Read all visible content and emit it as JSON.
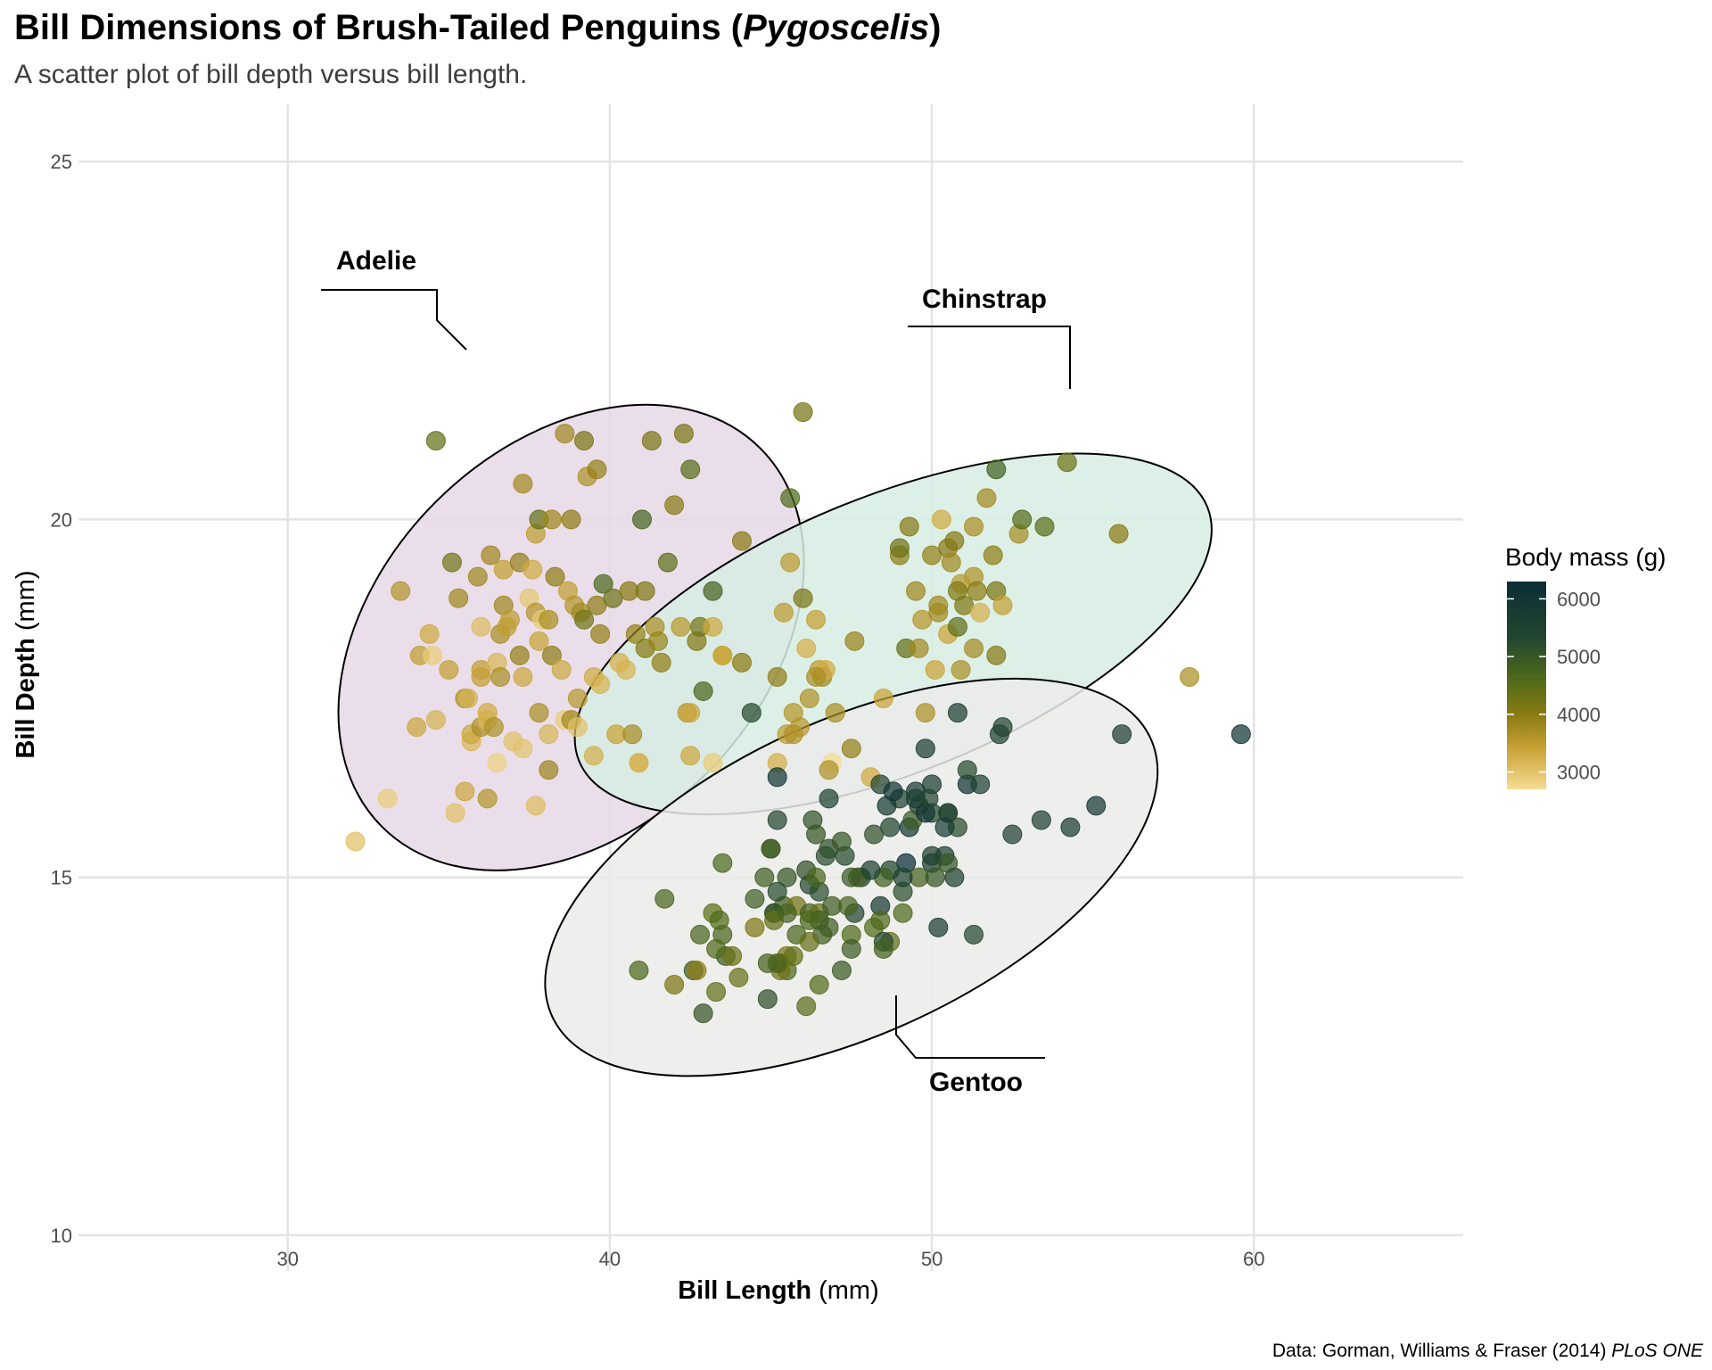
{
  "title": {
    "main": "Bill Dimensions of Brush-Tailed Penguins (",
    "genus": "Pygoscelis",
    "close": ")"
  },
  "subtitle": "A scatter plot of bill depth versus bill length.",
  "caption": {
    "text": "Data: Gorman, Williams & Fraser (2014) ",
    "journal": "PLoS ONE"
  },
  "colors": {
    "grid": "#e3e3e3",
    "point_low": "#f7dc93",
    "point_mid1": "#c9a336",
    "point_mid2": "#8a7a12",
    "point_mid3": "#4f6b1a",
    "point_mid4": "#24472f",
    "point_high": "#0b2d36",
    "ellipse_adelie": "#e6d8e8",
    "ellipse_chinstrap": "#d7ede4",
    "ellipse_gentoo": "#ebebea"
  },
  "chart_data": {
    "type": "scatter",
    "xlabel": {
      "bold": "Bill Length",
      "rest": " (mm)"
    },
    "ylabel": {
      "bold": "Bill Depth",
      "rest": " (mm)"
    },
    "xlim": [
      23.5,
      66.5
    ],
    "ylim": [
      9.5,
      25.8
    ],
    "x_ticks": [
      30,
      40,
      50,
      60
    ],
    "y_ticks": [
      10,
      15,
      20,
      25
    ],
    "grid": true,
    "legend": {
      "title": "Body mass (g)",
      "position": "right",
      "range": [
        2700,
        6300
      ],
      "ticks": [
        3000,
        4000,
        5000,
        6000
      ]
    },
    "groups": [
      {
        "name": "Adelie",
        "ellipse": {
          "cx": 38.8,
          "cy": 18.35,
          "rx_deg": 7.2,
          "ry_deg": 1.2,
          "angle_deg": 45
        }
      },
      {
        "name": "Chinstrap",
        "ellipse": {
          "cx": 48.8,
          "cy": 18.4,
          "rx_deg": 8.1,
          "ry_deg": 0.88,
          "angle_deg": 55
        }
      },
      {
        "name": "Gentoo",
        "ellipse": {
          "cx": 47.5,
          "cy": 15.0,
          "rx_deg": 8.3,
          "ry_deg": 0.95,
          "angle_deg": 58
        }
      }
    ],
    "points": [
      [
        32.1,
        15.5,
        3050
      ],
      [
        33.1,
        16.1,
        2900
      ],
      [
        33.5,
        19.0,
        3600
      ],
      [
        34.0,
        17.1,
        3350
      ],
      [
        34.1,
        18.1,
        3475
      ],
      [
        34.4,
        18.4,
        3325
      ],
      [
        34.5,
        18.1,
        2900
      ],
      [
        34.6,
        21.1,
        4400
      ],
      [
        34.6,
        17.2,
        3200
      ],
      [
        35.0,
        17.9,
        3450
      ],
      [
        35.1,
        19.4,
        4200
      ],
      [
        35.2,
        15.9,
        3050
      ],
      [
        35.3,
        18.9,
        3800
      ],
      [
        35.5,
        17.5,
        3700
      ],
      [
        35.5,
        16.2,
        3350
      ],
      [
        35.6,
        17.5,
        3200
      ],
      [
        35.7,
        16.9,
        3150
      ],
      [
        35.7,
        17.0,
        3350
      ],
      [
        35.9,
        19.2,
        3800
      ],
      [
        36.0,
        17.9,
        3450
      ],
      [
        36.0,
        18.5,
        3100
      ],
      [
        36.0,
        17.8,
        3450
      ],
      [
        36.0,
        17.1,
        3700
      ],
      [
        36.2,
        16.1,
        3600
      ],
      [
        36.2,
        17.2,
        3150
      ],
      [
        36.2,
        17.3,
        3300
      ],
      [
        36.3,
        19.5,
        3800
      ],
      [
        36.4,
        17.1,
        3650
      ],
      [
        36.5,
        18.0,
        3150
      ],
      [
        36.5,
        16.6,
        2850
      ],
      [
        36.6,
        17.8,
        3700
      ],
      [
        36.6,
        18.4,
        3700
      ],
      [
        36.7,
        19.3,
        3450
      ],
      [
        36.7,
        18.8,
        3800
      ],
      [
        36.8,
        18.5,
        3500
      ],
      [
        36.9,
        18.6,
        3500
      ],
      [
        37.0,
        16.9,
        3050
      ],
      [
        37.2,
        18.1,
        3900
      ],
      [
        37.2,
        19.4,
        3900
      ],
      [
        37.3,
        20.5,
        3775
      ],
      [
        37.3,
        17.8,
        3350
      ],
      [
        37.3,
        16.8,
        3000
      ],
      [
        37.5,
        18.9,
        2975
      ],
      [
        37.6,
        19.3,
        3300
      ],
      [
        37.7,
        18.7,
        3600
      ],
      [
        37.7,
        16.0,
        3075
      ],
      [
        37.7,
        19.8,
        3500
      ],
      [
        37.8,
        18.3,
        3400
      ],
      [
        37.8,
        17.3,
        3700
      ],
      [
        37.8,
        20.0,
        4400
      ],
      [
        37.9,
        18.6,
        2925
      ],
      [
        38.1,
        18.6,
        3700
      ],
      [
        38.1,
        17.0,
        3175
      ],
      [
        38.1,
        16.5,
        3825
      ],
      [
        38.2,
        18.1,
        3950
      ],
      [
        38.2,
        20.0,
        3800
      ],
      [
        38.3,
        19.2,
        3950
      ],
      [
        38.5,
        17.9,
        3325
      ],
      [
        38.6,
        21.2,
        3800
      ],
      [
        38.6,
        17.2,
        2900
      ],
      [
        38.7,
        19.0,
        3450
      ],
      [
        38.8,
        17.2,
        3800
      ],
      [
        38.8,
        20.0,
        3950
      ],
      [
        38.9,
        18.8,
        3600
      ],
      [
        39.0,
        17.1,
        3050
      ],
      [
        39.0,
        17.5,
        3550
      ],
      [
        39.1,
        18.7,
        3750
      ],
      [
        39.2,
        21.1,
        4150
      ],
      [
        39.2,
        18.6,
        4250
      ],
      [
        39.3,
        20.6,
        3650
      ],
      [
        39.5,
        16.7,
        3250
      ],
      [
        39.5,
        17.8,
        3300
      ],
      [
        39.6,
        20.7,
        3900
      ],
      [
        39.6,
        18.8,
        3950
      ],
      [
        39.7,
        18.4,
        3900
      ],
      [
        39.7,
        17.7,
        3200
      ],
      [
        39.8,
        19.1,
        4650
      ],
      [
        40.1,
        18.9,
        4300
      ],
      [
        40.2,
        17.0,
        3400
      ],
      [
        40.3,
        18.0,
        3250
      ],
      [
        40.5,
        17.9,
        3200
      ],
      [
        40.6,
        19.0,
        4000
      ],
      [
        40.7,
        17.0,
        3725
      ],
      [
        40.8,
        18.4,
        3900
      ],
      [
        40.9,
        16.6,
        3200
      ],
      [
        41.0,
        20.0,
        4725
      ],
      [
        41.1,
        19.0,
        4100
      ],
      [
        41.1,
        18.2,
        4050
      ],
      [
        41.3,
        21.1,
        4150
      ],
      [
        41.4,
        18.5,
        3700
      ],
      [
        41.5,
        18.3,
        3875
      ],
      [
        41.6,
        18.0,
        3950
      ],
      [
        41.8,
        19.4,
        4450
      ],
      [
        42.0,
        20.2,
        4000
      ],
      [
        42.2,
        18.5,
        3550
      ],
      [
        42.3,
        21.2,
        4150
      ],
      [
        42.5,
        20.7,
        4500
      ],
      [
        42.7,
        18.3,
        4075
      ],
      [
        42.8,
        18.5,
        4250
      ],
      [
        42.9,
        17.6,
        4700
      ],
      [
        43.2,
        19.0,
        4775
      ],
      [
        43.2,
        18.5,
        3350
      ],
      [
        43.5,
        18.1,
        3400
      ],
      [
        44.1,
        19.7,
        4000
      ],
      [
        44.1,
        18.0,
        4000
      ],
      [
        45.6,
        20.3,
        4600
      ],
      [
        46.0,
        21.5,
        4200
      ],
      [
        46.5,
        17.9,
        3500
      ],
      [
        50.0,
        19.5,
        3900
      ],
      [
        51.3,
        19.2,
        3650
      ],
      [
        45.4,
        18.7,
        3525
      ],
      [
        52.7,
        19.8,
        3725
      ],
      [
        45.2,
        17.8,
        3950
      ],
      [
        46.1,
        18.2,
        3250
      ],
      [
        51.3,
        18.2,
        3750
      ],
      [
        46.0,
        18.9,
        4150
      ],
      [
        51.3,
        19.9,
        3700
      ],
      [
        46.6,
        17.8,
        3800
      ],
      [
        51.7,
        20.3,
        3775
      ],
      [
        47.0,
        17.3,
        3700
      ],
      [
        52.0,
        18.1,
        4050
      ],
      [
        45.9,
        17.1,
        3575
      ],
      [
        50.5,
        19.6,
        4050
      ],
      [
        50.3,
        20.0,
        3300
      ],
      [
        58.0,
        17.8,
        3700
      ],
      [
        46.4,
        18.6,
        3450
      ],
      [
        49.2,
        18.2,
        4400
      ],
      [
        42.4,
        17.3,
        3600
      ],
      [
        48.5,
        17.5,
        3400
      ],
      [
        43.2,
        16.6,
        2900
      ],
      [
        50.6,
        19.4,
        3800
      ],
      [
        46.7,
        17.9,
        3300
      ],
      [
        52.0,
        19.0,
        4150
      ],
      [
        50.5,
        18.4,
        3400
      ],
      [
        49.5,
        19.0,
        3800
      ],
      [
        46.4,
        17.8,
        3700
      ],
      [
        52.8,
        20.0,
        4550
      ],
      [
        40.9,
        16.6,
        3200
      ],
      [
        54.2,
        20.8,
        4300
      ],
      [
        42.5,
        16.7,
        3350
      ],
      [
        51.0,
        18.8,
        4100
      ],
      [
        49.7,
        18.6,
        3600
      ],
      [
        47.5,
        16.8,
        3900
      ],
      [
        47.6,
        18.3,
        3850
      ],
      [
        52.0,
        20.7,
        4800
      ],
      [
        46.9,
        16.6,
        2700
      ],
      [
        53.5,
        19.9,
        4500
      ],
      [
        49.0,
        19.5,
        3950
      ],
      [
        46.2,
        17.5,
        3650
      ],
      [
        50.9,
        19.1,
        3550
      ],
      [
        45.5,
        17.0,
        3500
      ],
      [
        50.9,
        17.9,
        3675
      ],
      [
        50.8,
        18.5,
        4450
      ],
      [
        50.1,
        17.9,
        3400
      ],
      [
        49.0,
        19.6,
        4300
      ],
      [
        51.5,
        18.7,
        3250
      ],
      [
        49.8,
        17.3,
        3675
      ],
      [
        48.1,
        16.4,
        3325
      ],
      [
        51.4,
        19.0,
        3950
      ],
      [
        45.7,
        17.3,
        3600
      ],
      [
        50.7,
        19.7,
        4050
      ],
      [
        42.5,
        17.3,
        3350
      ],
      [
        52.2,
        18.8,
        3450
      ],
      [
        45.2,
        16.6,
        3250
      ],
      [
        49.3,
        19.9,
        4050
      ],
      [
        50.2,
        18.8,
        3800
      ],
      [
        45.6,
        19.4,
        3525
      ],
      [
        51.9,
        19.5,
        3950
      ],
      [
        46.8,
        16.5,
        3650
      ],
      [
        45.7,
        17.0,
        3650
      ],
      [
        55.8,
        19.8,
        4000
      ],
      [
        43.5,
        18.1,
        3400
      ],
      [
        49.6,
        18.2,
        3775
      ],
      [
        50.8,
        19.0,
        4100
      ],
      [
        50.2,
        18.7,
        3775
      ],
      [
        46.1,
        13.2,
        4500
      ],
      [
        50.0,
        16.3,
        5700
      ],
      [
        48.7,
        14.1,
        4450
      ],
      [
        50.0,
        15.2,
        5700
      ],
      [
        47.6,
        14.5,
        5400
      ],
      [
        46.5,
        13.5,
        4550
      ],
      [
        45.4,
        14.6,
        4800
      ],
      [
        46.7,
        15.3,
        5200
      ],
      [
        43.3,
        13.4,
        4400
      ],
      [
        46.8,
        15.4,
        5150
      ],
      [
        40.9,
        13.7,
        4650
      ],
      [
        49.0,
        16.1,
        5550
      ],
      [
        45.5,
        13.7,
        4650
      ],
      [
        48.4,
        14.6,
        5850
      ],
      [
        45.8,
        14.6,
        4200
      ],
      [
        49.3,
        15.7,
        5850
      ],
      [
        42.0,
        13.5,
        4150
      ],
      [
        49.2,
        15.2,
        6300
      ],
      [
        46.2,
        14.5,
        4800
      ],
      [
        48.7,
        15.1,
        5350
      ],
      [
        50.2,
        14.3,
        5700
      ],
      [
        45.1,
        14.5,
        5000
      ],
      [
        46.5,
        14.5,
        4400
      ],
      [
        46.3,
        15.8,
        5050
      ],
      [
        42.9,
        13.1,
        5000
      ],
      [
        46.1,
        15.1,
        5100
      ],
      [
        44.5,
        14.3,
        4100
      ],
      [
        47.8,
        15.0,
        5650
      ],
      [
        48.2,
        14.3,
        4600
      ],
      [
        50.0,
        15.3,
        5550
      ],
      [
        47.3,
        15.3,
        5250
      ],
      [
        42.8,
        14.2,
        4700
      ],
      [
        45.1,
        14.5,
        5050
      ],
      [
        59.6,
        17.0,
        6050
      ],
      [
        49.1,
        14.8,
        5150
      ],
      [
        48.4,
        16.3,
        5400
      ],
      [
        42.6,
        13.7,
        4950
      ],
      [
        44.4,
        17.3,
        5250
      ],
      [
        44.0,
        13.6,
        4350
      ],
      [
        48.7,
        15.7,
        5350
      ],
      [
        42.7,
        13.7,
        3950
      ],
      [
        49.6,
        16.0,
        5700
      ],
      [
        45.3,
        13.7,
        4300
      ],
      [
        49.6,
        15.0,
        4750
      ],
      [
        50.5,
        15.9,
        5550
      ],
      [
        43.6,
        13.9,
        4900
      ],
      [
        45.5,
        13.9,
        4200
      ],
      [
        50.5,
        15.9,
        5400
      ],
      [
        44.9,
        13.3,
        5100
      ],
      [
        45.2,
        15.8,
        5300
      ],
      [
        46.6,
        14.2,
        4850
      ],
      [
        48.5,
        14.1,
        5300
      ],
      [
        45.1,
        14.4,
        4400
      ],
      [
        50.1,
        15.0,
        5000
      ],
      [
        46.5,
        14.4,
        4900
      ],
      [
        45.0,
        15.4,
        5050
      ],
      [
        43.8,
        13.9,
        4300
      ],
      [
        45.5,
        15.0,
        5000
      ],
      [
        43.2,
        14.5,
        4450
      ],
      [
        50.4,
        15.3,
        5550
      ],
      [
        45.3,
        13.8,
        4200
      ],
      [
        46.2,
        14.9,
        5300
      ],
      [
        45.7,
        13.9,
        4400
      ],
      [
        54.3,
        15.7,
        5650
      ],
      [
        45.8,
        14.2,
        4700
      ],
      [
        49.8,
        16.8,
        5700
      ],
      [
        46.2,
        14.4,
        4650
      ],
      [
        49.5,
        16.2,
        5800
      ],
      [
        43.5,
        14.2,
        4700
      ],
      [
        50.7,
        15.0,
        5550
      ],
      [
        47.7,
        15.0,
        4750
      ],
      [
        46.4,
        15.6,
        5000
      ],
      [
        48.2,
        15.6,
        5100
      ],
      [
        46.5,
        14.8,
        5200
      ],
      [
        46.4,
        15.0,
        4700
      ],
      [
        48.6,
        16.0,
        5800
      ],
      [
        47.5,
        14.2,
        4600
      ],
      [
        51.1,
        16.3,
        6000
      ],
      [
        45.2,
        13.8,
        4750
      ],
      [
        45.2,
        16.4,
        5950
      ],
      [
        49.1,
        14.5,
        4625
      ],
      [
        52.5,
        15.6,
        5450
      ],
      [
        47.4,
        14.6,
        4725
      ],
      [
        50.0,
        15.9,
        5350
      ],
      [
        44.9,
        13.8,
        4750
      ],
      [
        50.8,
        17.3,
        5600
      ],
      [
        43.4,
        14.4,
        4600
      ],
      [
        51.3,
        14.2,
        5300
      ],
      [
        47.5,
        14.0,
        4875
      ],
      [
        52.1,
        17.0,
        5550
      ],
      [
        47.5,
        15.0,
        4950
      ],
      [
        52.2,
        17.1,
        5400
      ],
      [
        45.5,
        14.5,
        4750
      ],
      [
        49.5,
        16.1,
        5650
      ],
      [
        44.5,
        14.7,
        4850
      ],
      [
        50.8,
        15.7,
        5200
      ],
      [
        49.4,
        15.8,
        4925
      ],
      [
        46.9,
        14.6,
        4875
      ],
      [
        48.4,
        14.4,
        4625
      ],
      [
        51.1,
        16.5,
        5250
      ],
      [
        48.5,
        15.0,
        4850
      ],
      [
        55.9,
        17.0,
        5600
      ],
      [
        47.2,
        15.5,
        4975
      ],
      [
        49.1,
        15.0,
        5500
      ],
      [
        46.8,
        16.1,
        5500
      ],
      [
        41.7,
        14.7,
        4700
      ],
      [
        53.4,
        15.8,
        5500
      ],
      [
        43.3,
        14.0,
        4575
      ],
      [
        48.1,
        15.1,
        5500
      ],
      [
        50.5,
        15.2,
        5000
      ],
      [
        49.8,
        15.9,
        5950
      ],
      [
        43.5,
        15.2,
        4650
      ],
      [
        51.5,
        16.3,
        5500
      ],
      [
        46.2,
        14.1,
        4375
      ],
      [
        55.1,
        16.0,
        5850
      ],
      [
        48.8,
        16.2,
        6000
      ],
      [
        47.2,
        13.7,
        4925
      ],
      [
        46.8,
        14.3,
        4850
      ],
      [
        50.4,
        15.7,
        5750
      ],
      [
        45.2,
        14.8,
        5200
      ],
      [
        49.9,
        16.1,
        5400
      ],
      [
        45.0,
        15.4,
        4800
      ],
      [
        44.8,
        15.0,
        4850
      ],
      [
        48.5,
        14.0,
        4800
      ]
    ]
  }
}
